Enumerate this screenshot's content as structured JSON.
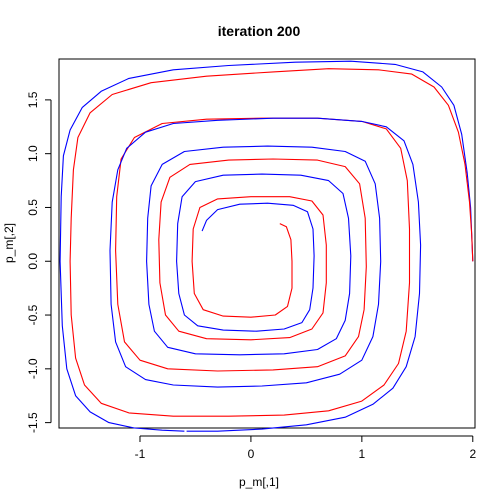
{
  "chart_data": {
    "type": "line",
    "title": "iteration 200",
    "xlabel": "p_m[,1]",
    "ylabel": "p_m[,2]",
    "xlim": [
      -1.73,
      2.02
    ],
    "ylim": [
      -1.55,
      1.88
    ],
    "xticks": [
      -1,
      0,
      1,
      2
    ],
    "xtick_labels": [
      "-1",
      "0",
      "1",
      "2"
    ],
    "yticks": [
      -1.5,
      -1.0,
      -0.5,
      0.0,
      0.5,
      1.0,
      1.5
    ],
    "ytick_labels": [
      "-1.5",
      "-1.0",
      "-0.5",
      "0.0",
      "0.5",
      "1.0",
      "1.5"
    ],
    "grid": false,
    "series": [
      {
        "color": "#0000ff",
        "points": [
          [
            2.0,
            0.0
          ],
          [
            1.99,
            0.25
          ],
          [
            1.98,
            0.5
          ],
          [
            1.95,
            0.82
          ],
          [
            1.9,
            1.18
          ],
          [
            1.83,
            1.45
          ],
          [
            1.72,
            1.62
          ],
          [
            1.55,
            1.76
          ],
          [
            1.3,
            1.83
          ],
          [
            0.9,
            1.86
          ],
          [
            0.4,
            1.85
          ],
          [
            -0.2,
            1.82
          ],
          [
            -0.7,
            1.78
          ],
          [
            -1.1,
            1.7
          ],
          [
            -1.35,
            1.58
          ],
          [
            -1.52,
            1.43
          ],
          [
            -1.63,
            1.22
          ],
          [
            -1.69,
            0.98
          ],
          [
            -1.71,
            0.6
          ],
          [
            -1.72,
            0.0
          ],
          [
            -1.7,
            -0.6
          ],
          [
            -1.66,
            -1.0
          ],
          [
            -1.58,
            -1.25
          ],
          [
            -1.45,
            -1.4
          ],
          [
            -1.28,
            -1.5
          ],
          [
            -1.05,
            -1.55
          ],
          [
            -0.8,
            -1.57
          ],
          [
            -0.6,
            -1.58
          ]
        ]
      },
      {
        "color": "#ff0000",
        "points": [
          [
            2.0,
            0.0
          ],
          [
            1.99,
            0.25
          ],
          [
            1.97,
            0.55
          ],
          [
            1.93,
            0.9
          ],
          [
            1.87,
            1.2
          ],
          [
            1.78,
            1.45
          ],
          [
            1.65,
            1.62
          ],
          [
            1.45,
            1.74
          ],
          [
            1.15,
            1.78
          ],
          [
            0.7,
            1.79
          ],
          [
            0.2,
            1.76
          ],
          [
            -0.4,
            1.72
          ],
          [
            -0.9,
            1.66
          ],
          [
            -1.25,
            1.55
          ],
          [
            -1.45,
            1.38
          ],
          [
            -1.56,
            1.15
          ],
          [
            -1.6,
            0.85
          ],
          [
            -1.62,
            0.4
          ],
          [
            -1.63,
            0.0
          ],
          [
            -1.62,
            -0.5
          ],
          [
            -1.58,
            -0.9
          ],
          [
            -1.5,
            -1.15
          ],
          [
            -1.35,
            -1.32
          ],
          [
            -1.1,
            -1.41
          ],
          [
            -0.7,
            -1.44
          ],
          [
            -0.2,
            -1.44
          ],
          [
            0.3,
            -1.43
          ],
          [
            0.7,
            -1.39
          ],
          [
            1.0,
            -1.3
          ],
          [
            1.2,
            -1.15
          ],
          [
            1.33,
            -0.95
          ],
          [
            1.4,
            -0.65
          ],
          [
            1.43,
            -0.2
          ],
          [
            1.43,
            0.3
          ],
          [
            1.41,
            0.75
          ],
          [
            1.35,
            1.05
          ],
          [
            1.22,
            1.23
          ],
          [
            1.0,
            1.3
          ],
          [
            0.6,
            1.33
          ],
          [
            0.1,
            1.33
          ],
          [
            -0.4,
            1.32
          ],
          [
            -0.8,
            1.28
          ],
          [
            -1.05,
            1.15
          ],
          [
            -1.17,
            0.95
          ],
          [
            -1.21,
            0.6
          ],
          [
            -1.22,
            0.1
          ],
          [
            -1.2,
            -0.4
          ],
          [
            -1.14,
            -0.75
          ],
          [
            -1.0,
            -0.92
          ],
          [
            -0.75,
            -1.0
          ],
          [
            -0.3,
            -1.02
          ],
          [
            0.2,
            -1.01
          ],
          [
            0.6,
            -0.98
          ],
          [
            0.85,
            -0.88
          ],
          [
            0.97,
            -0.7
          ],
          [
            1.02,
            -0.45
          ],
          [
            1.04,
            -0.05
          ],
          [
            1.03,
            0.4
          ],
          [
            0.98,
            0.72
          ],
          [
            0.85,
            0.88
          ],
          [
            0.6,
            0.94
          ],
          [
            0.2,
            0.95
          ],
          [
            -0.2,
            0.94
          ],
          [
            -0.55,
            0.9
          ],
          [
            -0.73,
            0.78
          ],
          [
            -0.81,
            0.55
          ],
          [
            -0.83,
            0.2
          ],
          [
            -0.82,
            -0.2
          ],
          [
            -0.77,
            -0.5
          ],
          [
            -0.65,
            -0.65
          ],
          [
            -0.4,
            -0.72
          ],
          [
            0.0,
            -0.73
          ],
          [
            0.35,
            -0.71
          ],
          [
            0.55,
            -0.63
          ],
          [
            0.65,
            -0.48
          ],
          [
            0.68,
            -0.2
          ],
          [
            0.68,
            0.15
          ],
          [
            0.65,
            0.43
          ],
          [
            0.55,
            0.56
          ],
          [
            0.35,
            0.6
          ],
          [
            0.0,
            0.6
          ],
          [
            -0.3,
            0.58
          ],
          [
            -0.46,
            0.5
          ],
          [
            -0.52,
            0.3
          ],
          [
            -0.53,
            0.0
          ],
          [
            -0.51,
            -0.3
          ],
          [
            -0.43,
            -0.45
          ],
          [
            -0.25,
            -0.51
          ],
          [
            0.0,
            -0.52
          ],
          [
            0.22,
            -0.5
          ],
          [
            0.33,
            -0.42
          ],
          [
            0.37,
            -0.25
          ],
          [
            0.37,
            0.0
          ],
          [
            0.36,
            0.2
          ],
          [
            0.32,
            0.32
          ],
          [
            0.26,
            0.35
          ]
        ]
      },
      {
        "color": "#0000ff",
        "points": [
          [
            -0.58,
            -1.58
          ],
          [
            -0.3,
            -1.58
          ],
          [
            0.1,
            -1.56
          ],
          [
            0.5,
            -1.52
          ],
          [
            0.85,
            -1.45
          ],
          [
            1.1,
            -1.33
          ],
          [
            1.28,
            -1.18
          ],
          [
            1.4,
            -0.98
          ],
          [
            1.48,
            -0.7
          ],
          [
            1.52,
            -0.3
          ],
          [
            1.53,
            0.15
          ],
          [
            1.51,
            0.55
          ],
          [
            1.46,
            0.9
          ],
          [
            1.38,
            1.12
          ],
          [
            1.22,
            1.25
          ],
          [
            1.0,
            1.3
          ],
          [
            0.6,
            1.33
          ],
          [
            0.2,
            1.33
          ],
          [
            -0.3,
            1.31
          ],
          [
            -0.7,
            1.28
          ],
          [
            -0.95,
            1.2
          ],
          [
            -1.12,
            1.05
          ],
          [
            -1.2,
            0.85
          ],
          [
            -1.25,
            0.55
          ],
          [
            -1.27,
            0.1
          ],
          [
            -1.26,
            -0.4
          ],
          [
            -1.22,
            -0.75
          ],
          [
            -1.13,
            -0.98
          ],
          [
            -0.95,
            -1.1
          ],
          [
            -0.7,
            -1.15
          ],
          [
            -0.3,
            -1.17
          ],
          [
            0.1,
            -1.16
          ],
          [
            0.5,
            -1.13
          ],
          [
            0.8,
            -1.05
          ],
          [
            1.0,
            -0.92
          ],
          [
            1.1,
            -0.7
          ],
          [
            1.15,
            -0.4
          ],
          [
            1.17,
            0.0
          ],
          [
            1.16,
            0.4
          ],
          [
            1.12,
            0.72
          ],
          [
            1.03,
            0.93
          ],
          [
            0.85,
            1.02
          ],
          [
            0.55,
            1.06
          ],
          [
            0.15,
            1.07
          ],
          [
            -0.25,
            1.06
          ],
          [
            -0.6,
            1.02
          ],
          [
            -0.8,
            0.9
          ],
          [
            -0.9,
            0.7
          ],
          [
            -0.93,
            0.4
          ],
          [
            -0.94,
            0.0
          ],
          [
            -0.92,
            -0.4
          ],
          [
            -0.87,
            -0.65
          ],
          [
            -0.75,
            -0.8
          ],
          [
            -0.5,
            -0.86
          ],
          [
            -0.1,
            -0.87
          ],
          [
            0.3,
            -0.86
          ],
          [
            0.6,
            -0.82
          ],
          [
            0.77,
            -0.72
          ],
          [
            0.85,
            -0.55
          ],
          [
            0.89,
            -0.3
          ],
          [
            0.9,
            0.05
          ],
          [
            0.88,
            0.4
          ],
          [
            0.83,
            0.63
          ],
          [
            0.7,
            0.75
          ],
          [
            0.45,
            0.8
          ],
          [
            0.1,
            0.81
          ],
          [
            -0.25,
            0.8
          ],
          [
            -0.5,
            0.74
          ],
          [
            -0.62,
            0.6
          ],
          [
            -0.66,
            0.35
          ],
          [
            -0.67,
            0.0
          ],
          [
            -0.65,
            -0.3
          ],
          [
            -0.6,
            -0.5
          ],
          [
            -0.48,
            -0.6
          ],
          [
            -0.25,
            -0.64
          ],
          [
            0.05,
            -0.65
          ],
          [
            0.3,
            -0.63
          ],
          [
            0.46,
            -0.57
          ],
          [
            0.53,
            -0.45
          ],
          [
            0.56,
            -0.25
          ],
          [
            0.57,
            0.05
          ],
          [
            0.56,
            0.3
          ],
          [
            0.51,
            0.46
          ],
          [
            0.38,
            0.52
          ],
          [
            0.15,
            0.54
          ],
          [
            -0.1,
            0.53
          ],
          [
            -0.3,
            0.48
          ],
          [
            -0.4,
            0.38
          ],
          [
            -0.44,
            0.28
          ]
        ]
      }
    ]
  }
}
